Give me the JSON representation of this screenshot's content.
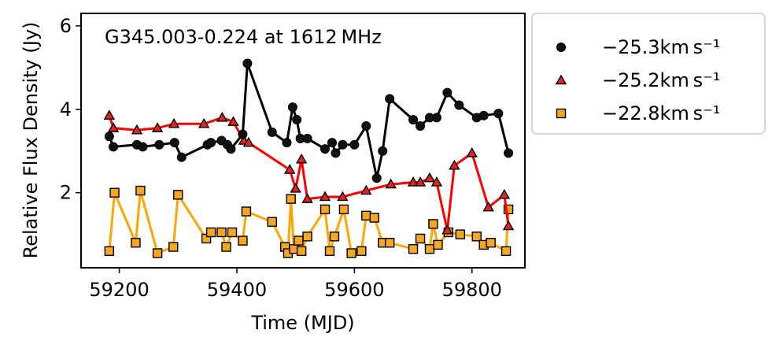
{
  "chart_data": {
    "type": "line",
    "title": "",
    "annotation": "G345.003-0.224 at 1612 MHz",
    "xlabel": "Time (MJD)",
    "ylabel": "Relative Flux Density (Jy)",
    "xlim": [
      59135,
      59890
    ],
    "ylim": [
      0.2,
      6.3
    ],
    "xticks": [
      59200,
      59400,
      59600,
      59800
    ],
    "yticks": [
      2,
      4,
      6
    ],
    "legend_position": "outside-right",
    "series": [
      {
        "name": "−25.3km s⁻¹",
        "marker": "circle",
        "color": "#000000",
        "x": [
          59183,
          59190,
          59230,
          59240,
          59268,
          59294,
          59306,
          59350,
          59356,
          59374,
          59384,
          59390,
          59410,
          59418,
          59460,
          59485,
          59495,
          59502,
          59508,
          59520,
          59550,
          59562,
          59568,
          59580,
          59600,
          59620,
          59638,
          59648,
          59660,
          59700,
          59712,
          59728,
          59740,
          59758,
          59778,
          59808,
          59820,
          59845,
          59862
        ],
        "y": [
          3.35,
          3.1,
          3.15,
          3.1,
          3.15,
          3.2,
          2.85,
          3.15,
          3.2,
          3.25,
          3.15,
          3.05,
          3.4,
          5.1,
          3.45,
          3.2,
          4.05,
          3.75,
          3.3,
          3.3,
          3.05,
          3.2,
          2.95,
          3.15,
          3.15,
          3.6,
          2.35,
          3.0,
          4.25,
          3.75,
          3.6,
          3.8,
          3.8,
          4.4,
          4.1,
          3.8,
          3.85,
          3.9,
          2.95
        ]
      },
      {
        "name": "−25.2km s⁻¹",
        "marker": "triangle",
        "color": "#ff0000",
        "x": [
          59183,
          59190,
          59230,
          59265,
          59293,
          59344,
          59375,
          59394,
          59412,
          59420,
          59490,
          59500,
          59510,
          59520,
          59550,
          59580,
          59620,
          59662,
          59700,
          59712,
          59728,
          59740,
          59758,
          59770,
          59800,
          59828,
          59855,
          59862
        ],
        "y": [
          3.85,
          3.55,
          3.5,
          3.55,
          3.65,
          3.65,
          3.8,
          3.7,
          3.25,
          3.2,
          2.55,
          2.1,
          2.8,
          1.85,
          1.9,
          1.9,
          2.05,
          2.2,
          2.25,
          2.25,
          2.35,
          2.25,
          1.1,
          2.65,
          2.95,
          1.65,
          1.95,
          1.2
        ]
      },
      {
        "name": "−22.8km s⁻¹",
        "marker": "square",
        "color": "#ffa500",
        "x": [
          59183,
          59192,
          59228,
          59236,
          59265,
          59292,
          59300,
          59348,
          59356,
          59374,
          59382,
          59392,
          59410,
          59416,
          59460,
          59482,
          59487,
          59492,
          59497,
          59505,
          59510,
          59520,
          59550,
          59558,
          59566,
          59582,
          59595,
          59612,
          59620,
          59634,
          59648,
          59660,
          59700,
          59712,
          59728,
          59734,
          59742,
          59760,
          59780,
          59808,
          59820,
          59832,
          59858,
          59862
        ],
        "y": [
          0.6,
          2.0,
          0.8,
          2.05,
          0.55,
          0.7,
          1.95,
          0.9,
          1.05,
          1.05,
          0.7,
          1.05,
          0.85,
          1.55,
          1.3,
          0.7,
          0.55,
          1.85,
          0.65,
          0.85,
          0.6,
          0.95,
          1.6,
          0.6,
          0.95,
          1.6,
          0.55,
          0.6,
          1.45,
          1.4,
          0.8,
          0.8,
          0.65,
          0.9,
          0.65,
          1.25,
          0.75,
          1.05,
          1.0,
          0.95,
          0.75,
          0.8,
          0.6,
          1.6
        ]
      }
    ]
  }
}
